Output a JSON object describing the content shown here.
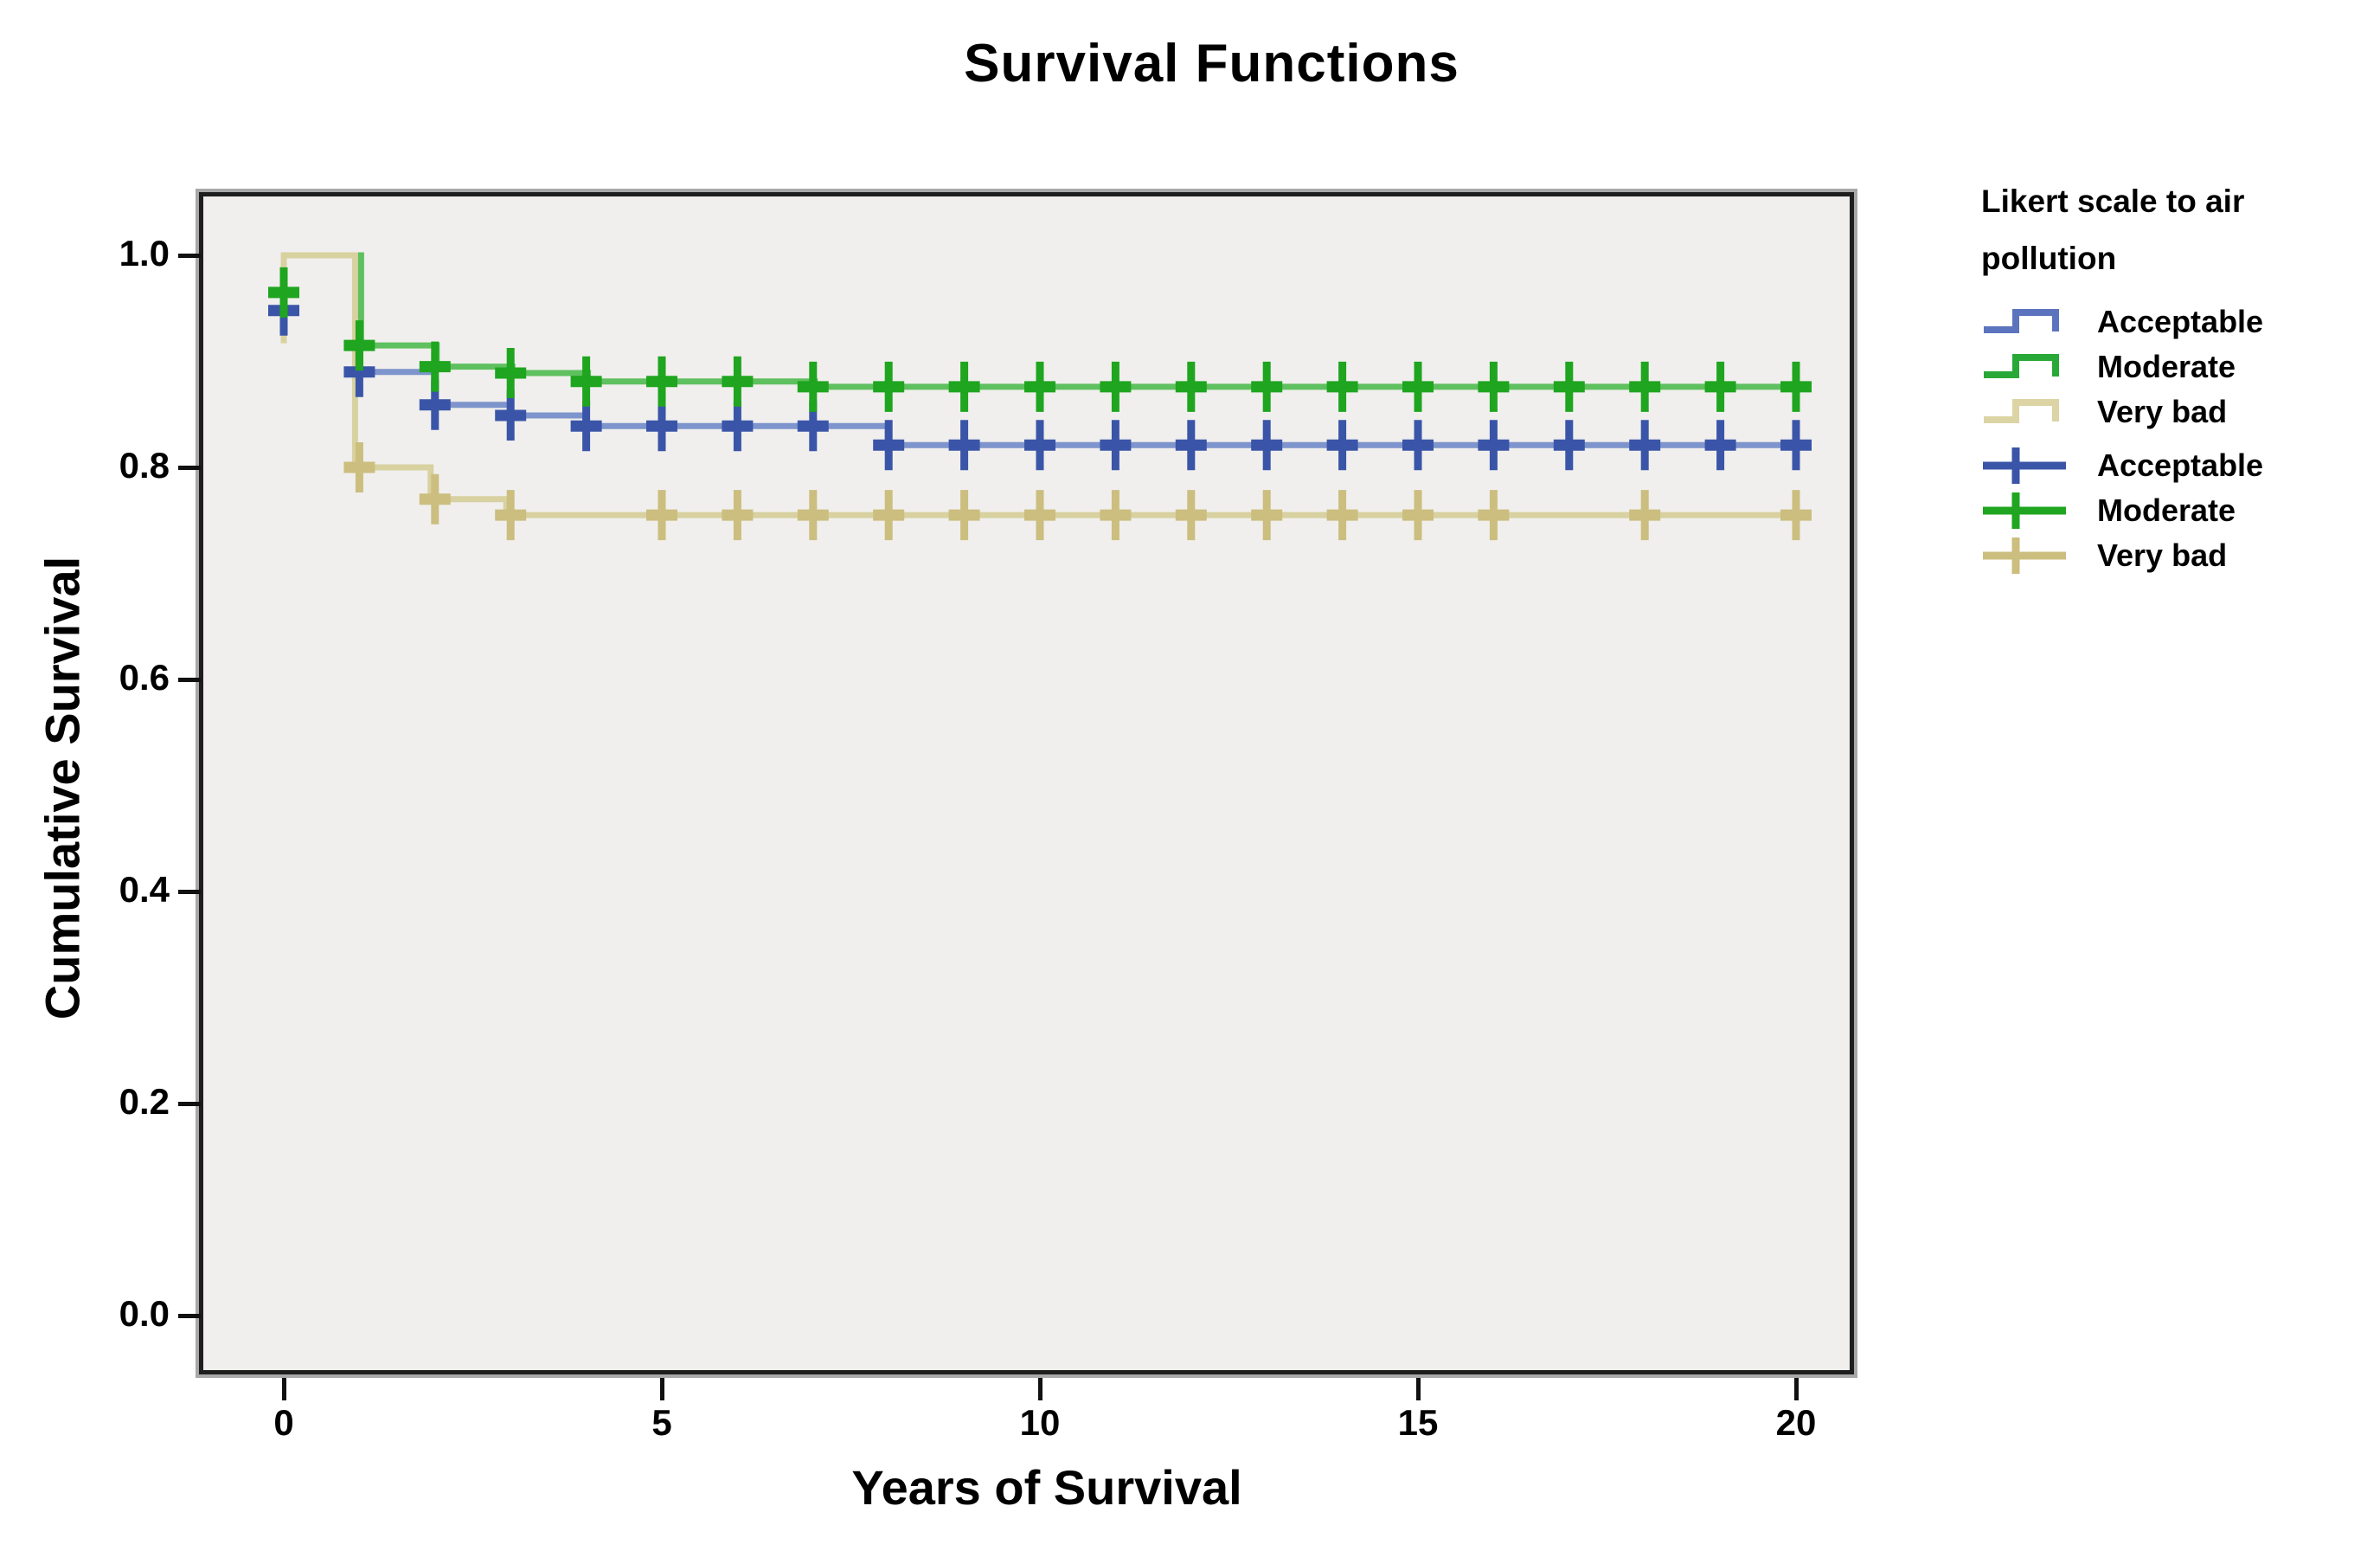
{
  "title": "Survival Functions",
  "axes": {
    "x": {
      "label": "Years of Survival",
      "ticks": [
        0,
        5,
        10,
        15,
        20
      ]
    },
    "y": {
      "label": "Cumulative Survival",
      "ticks": [
        {
          "label": "1.0",
          "value": 1.0
        },
        {
          "label": "0.8",
          "value": 0.8
        },
        {
          "label": "0.6",
          "value": 0.6
        },
        {
          "label": "0.4",
          "value": 0.4
        },
        {
          "label": "0.2",
          "value": 0.2
        },
        {
          "label": "0.0",
          "value": 0.0
        }
      ]
    }
  },
  "legend": {
    "title_line1": "Likert scale to air",
    "title_line2": "pollution",
    "entries": [
      {
        "glyph": "step",
        "label": "Acceptable",
        "color": "#5C74BE"
      },
      {
        "glyph": "step",
        "label": "Moderate",
        "color": "#28A836"
      },
      {
        "glyph": "step",
        "label": "Very bad",
        "color": "#DCD4A4"
      },
      {
        "glyph": "plus",
        "label": "Acceptable",
        "color": "#3A55A8"
      },
      {
        "glyph": "plus",
        "label": "Moderate",
        "color": "#1FA51F"
      },
      {
        "glyph": "plus",
        "label": "Very bad",
        "color": "#CBBE7F"
      }
    ]
  },
  "colors": {
    "plot_background": "#f0efed",
    "plot_border": "#1e1e1e",
    "acceptable_line": "#7E94CC",
    "acceptable_marker": "#3A55A8",
    "moderate_line": "#5FC05F",
    "moderate_marker": "#1FA51F",
    "verybad_line": "#D8D1A0",
    "verybad_marker": "#CBBE7F"
  },
  "chart_data": {
    "type": "line",
    "subtype": "kaplan-meier-step",
    "title": "Survival Functions",
    "xlabel": "Years of Survival",
    "ylabel": "Cumulative Survival",
    "xlim": [
      0,
      20
    ],
    "ylim": [
      0.0,
      1.0
    ],
    "x_ticks": [
      0,
      5,
      10,
      15,
      20
    ],
    "y_ticks": [
      1.0,
      0.8,
      0.6,
      0.4,
      0.2,
      0.0
    ],
    "grid": false,
    "legend_position": "right",
    "legend_title": "Likert scale to air pollution",
    "series": [
      {
        "name": "Acceptable",
        "line_color": "#7E94CC",
        "marker_color": "#3A55A8",
        "drop_dx": -1,
        "steps": [
          [
            0,
            1.0
          ],
          [
            1,
            0.89
          ],
          [
            2,
            0.859
          ],
          [
            3,
            0.849
          ],
          [
            4,
            0.839
          ],
          [
            8,
            0.821
          ]
        ],
        "end_t": 20,
        "censors": [
          [
            0,
            0.948
          ],
          [
            1,
            0.89
          ],
          [
            2,
            0.859
          ],
          [
            3,
            0.849
          ],
          [
            4,
            0.839
          ],
          [
            5,
            0.839
          ],
          [
            6,
            0.839
          ],
          [
            7,
            0.839
          ],
          [
            8,
            0.821
          ],
          [
            9,
            0.821
          ],
          [
            10,
            0.821
          ],
          [
            11,
            0.821
          ],
          [
            12,
            0.821
          ],
          [
            13,
            0.821
          ],
          [
            14,
            0.821
          ],
          [
            15,
            0.821
          ],
          [
            16,
            0.821
          ],
          [
            17,
            0.821
          ],
          [
            18,
            0.821
          ],
          [
            19,
            0.821
          ],
          [
            20,
            0.821
          ]
        ]
      },
      {
        "name": "Moderate",
        "line_color": "#5FC05F",
        "marker_color": "#1FA51F",
        "drop_dx": 2,
        "steps": [
          [
            0,
            1.0
          ],
          [
            1,
            0.915
          ],
          [
            2,
            0.895
          ],
          [
            3,
            0.889
          ],
          [
            4,
            0.881
          ],
          [
            7,
            0.876
          ]
        ],
        "end_t": 20,
        "censors": [
          [
            0,
            0.965
          ],
          [
            1,
            0.915
          ],
          [
            2,
            0.895
          ],
          [
            3,
            0.889
          ],
          [
            4,
            0.881
          ],
          [
            5,
            0.881
          ],
          [
            6,
            0.881
          ],
          [
            7,
            0.876
          ],
          [
            8,
            0.876
          ],
          [
            9,
            0.876
          ],
          [
            10,
            0.876
          ],
          [
            11,
            0.876
          ],
          [
            12,
            0.876
          ],
          [
            13,
            0.876
          ],
          [
            14,
            0.876
          ],
          [
            15,
            0.876
          ],
          [
            16,
            0.876
          ],
          [
            17,
            0.876
          ],
          [
            18,
            0.876
          ],
          [
            19,
            0.876
          ],
          [
            20,
            0.876
          ]
        ]
      },
      {
        "name": "Very bad",
        "line_color": "#D8D1A0",
        "marker_color": "#CBBE7F",
        "drop_dx": -5,
        "lead_stub": 0.917,
        "steps": [
          [
            0,
            1.0
          ],
          [
            1,
            0.8
          ],
          [
            2,
            0.77
          ],
          [
            3,
            0.755
          ]
        ],
        "end_t": 20,
        "censors": [
          [
            1,
            0.8
          ],
          [
            2,
            0.77
          ],
          [
            3,
            0.755
          ],
          [
            5,
            0.755
          ],
          [
            6,
            0.755
          ],
          [
            7,
            0.755
          ],
          [
            8,
            0.755
          ],
          [
            9,
            0.755
          ],
          [
            10,
            0.755
          ],
          [
            11,
            0.755
          ],
          [
            12,
            0.755
          ],
          [
            13,
            0.755
          ],
          [
            14,
            0.755
          ],
          [
            15,
            0.755
          ],
          [
            16,
            0.755
          ],
          [
            18,
            0.755
          ],
          [
            20,
            0.755
          ]
        ]
      }
    ]
  }
}
